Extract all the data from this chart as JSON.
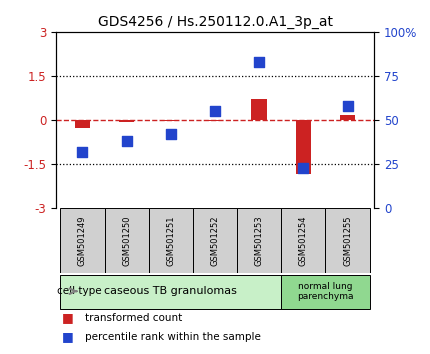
{
  "title": "GDS4256 / Hs.250112.0.A1_3p_at",
  "samples": [
    "GSM501249",
    "GSM501250",
    "GSM501251",
    "GSM501252",
    "GSM501253",
    "GSM501254",
    "GSM501255"
  ],
  "transformed_count": [
    -0.28,
    -0.05,
    -0.04,
    -0.04,
    0.72,
    -1.82,
    0.18
  ],
  "percentile_rank": [
    32,
    38,
    42,
    55,
    83,
    23,
    58
  ],
  "ylim_left": [
    -3,
    3
  ],
  "ylim_right": [
    0,
    100
  ],
  "yticks_left": [
    -3,
    -1.5,
    0,
    1.5,
    3
  ],
  "yticks_right": [
    0,
    25,
    50,
    75,
    100
  ],
  "ytick_labels_right": [
    "0",
    "25",
    "50",
    "75",
    "100%"
  ],
  "bar_color": "#cc2222",
  "dot_color": "#2244cc",
  "group1_indices": [
    0,
    1,
    2,
    3,
    4
  ],
  "group2_indices": [
    5,
    6
  ],
  "group1_label": "caseous TB granulomas",
  "group2_label": "normal lung\nparenchyma",
  "group1_color": "#c8f0c8",
  "group2_color": "#90d890",
  "cell_type_label": "cell type",
  "legend_label_red": "transformed count",
  "legend_label_blue": "percentile rank within the sample",
  "bar_width": 0.35,
  "dot_size": 55,
  "bg_color": "#ffffff",
  "label_box_color": "#d0d0d0",
  "title_fontsize": 10
}
